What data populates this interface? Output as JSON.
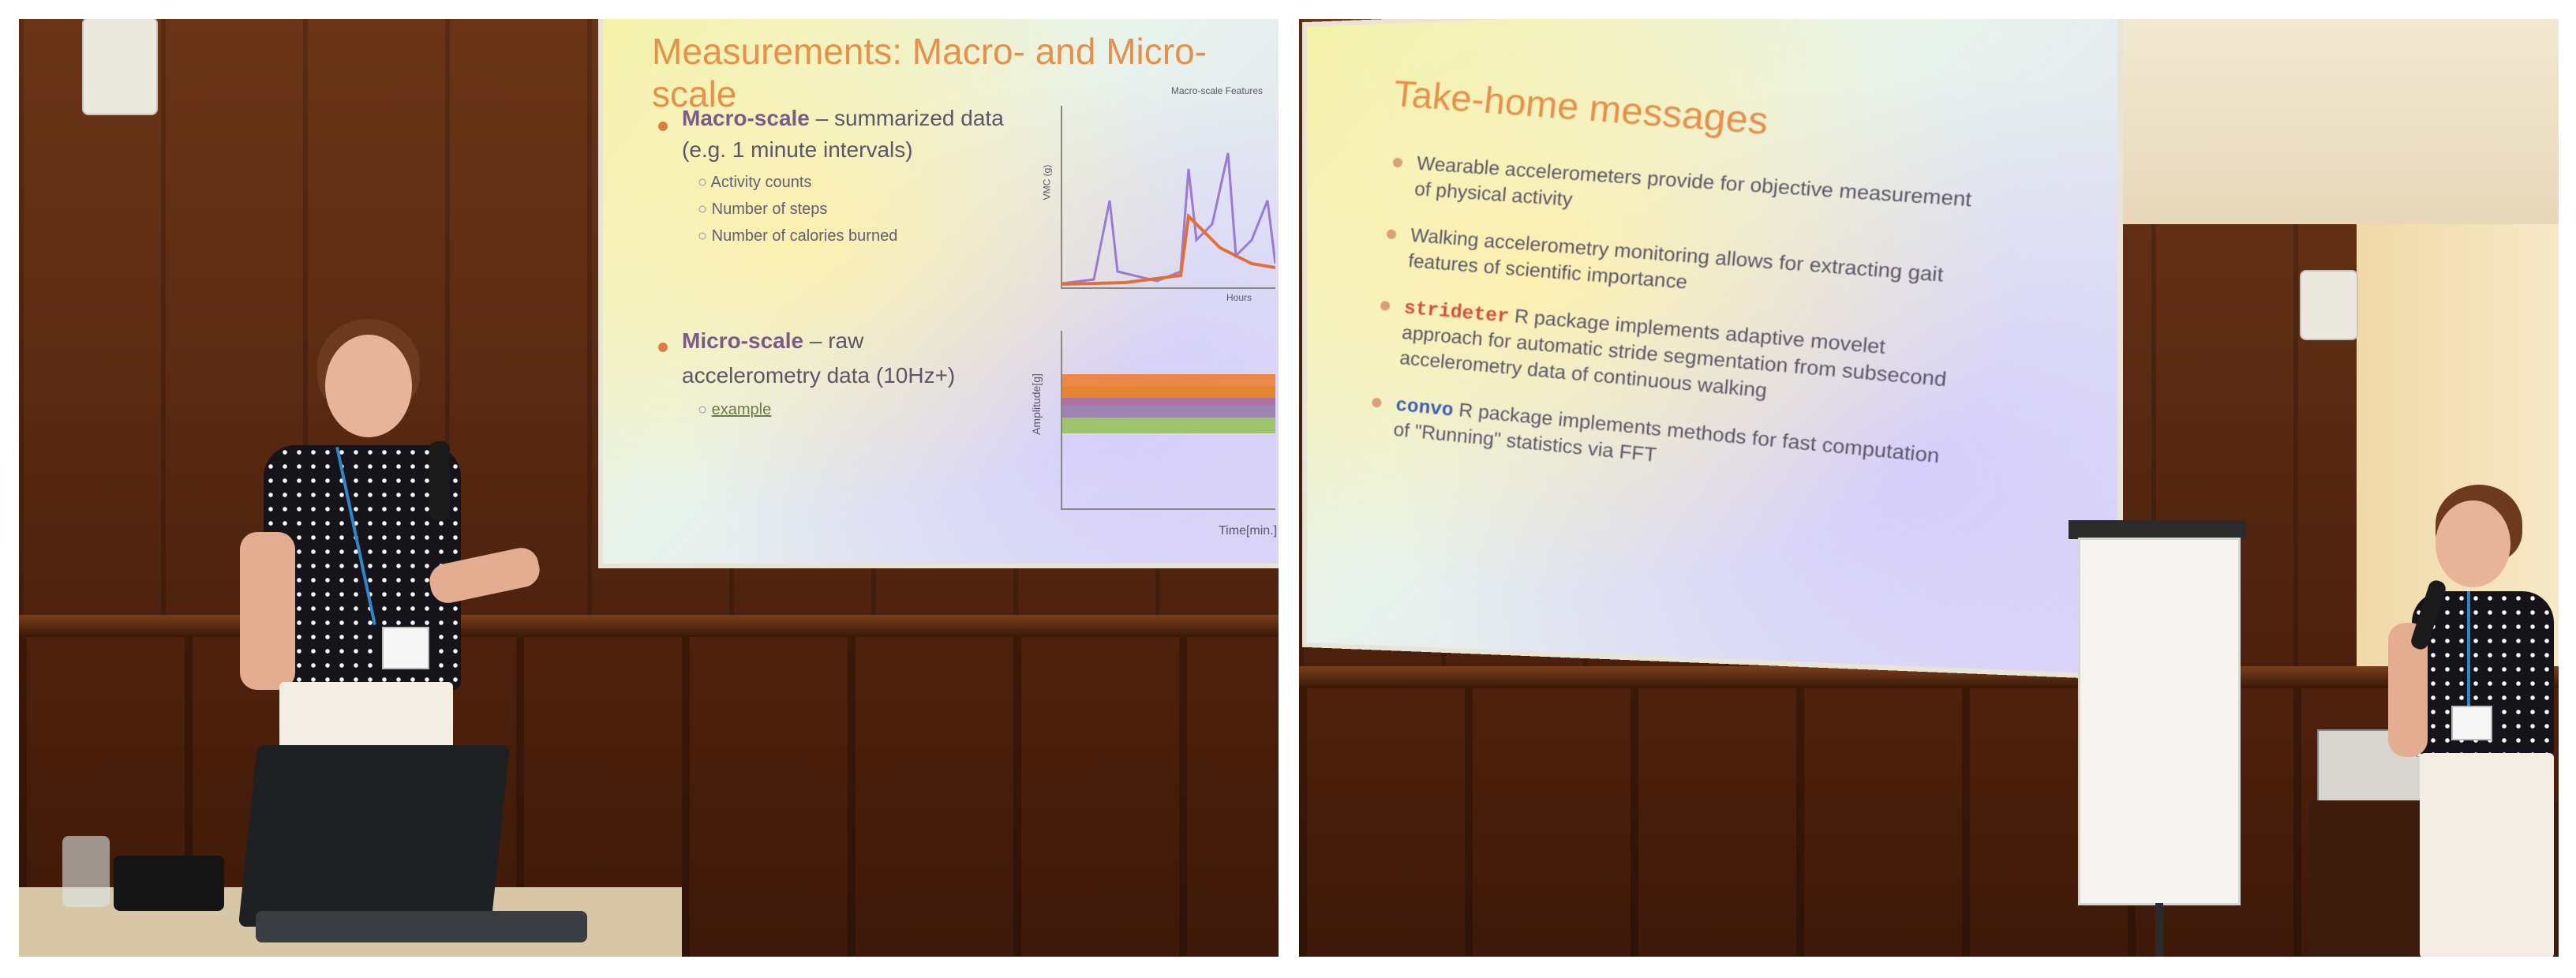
{
  "left_photo": {
    "slide": {
      "title": "Measurements: Macro- and Micro-scale",
      "bullets": [
        {
          "term": "Macro-scale",
          "rest": " – summarized data",
          "line2": "(e.g. 1 minute intervals)",
          "subitems": [
            "Activity counts",
            "Number of steps",
            "Number of calories burned"
          ]
        },
        {
          "term": "Micro-scale",
          "rest": " – raw",
          "line2": "accelerometry data (10Hz+)",
          "subitems": [
            "example"
          ]
        }
      ],
      "chart1": {
        "title": "Macro-scale Features",
        "ylabel": "VMC (g)",
        "xlabel": "Hours"
      },
      "chart2": {
        "ylabel": "Amplitude[g]",
        "xlabel": "Time[min.]"
      }
    }
  },
  "right_photo": {
    "slide": {
      "title": "Take-home messages",
      "bullets": [
        {
          "line1": "Wearable accelerometers provide for objective measurement",
          "line2": "of physical activity"
        },
        {
          "line1": "Walking accelerometry monitoring allows for extracting gait",
          "line2": "features of scientific importance"
        },
        {
          "code": "strideter",
          "line1": " R package implements adaptive movelet",
          "line2": "approach for automatic stride segmentation from subsecond",
          "line3": "accelerometry data of continuous walking"
        },
        {
          "code": "convo",
          "line1": " R package implements methods for fast computation",
          "line2": "of \"Running\" statistics via FFT"
        }
      ]
    }
  },
  "colors": {
    "title_orange": "#e5914a",
    "wood": "#5a2a12",
    "lanyard_blue": "#2f86c9",
    "code_red": "#d2503a",
    "code_blue": "#3b5fb0"
  }
}
